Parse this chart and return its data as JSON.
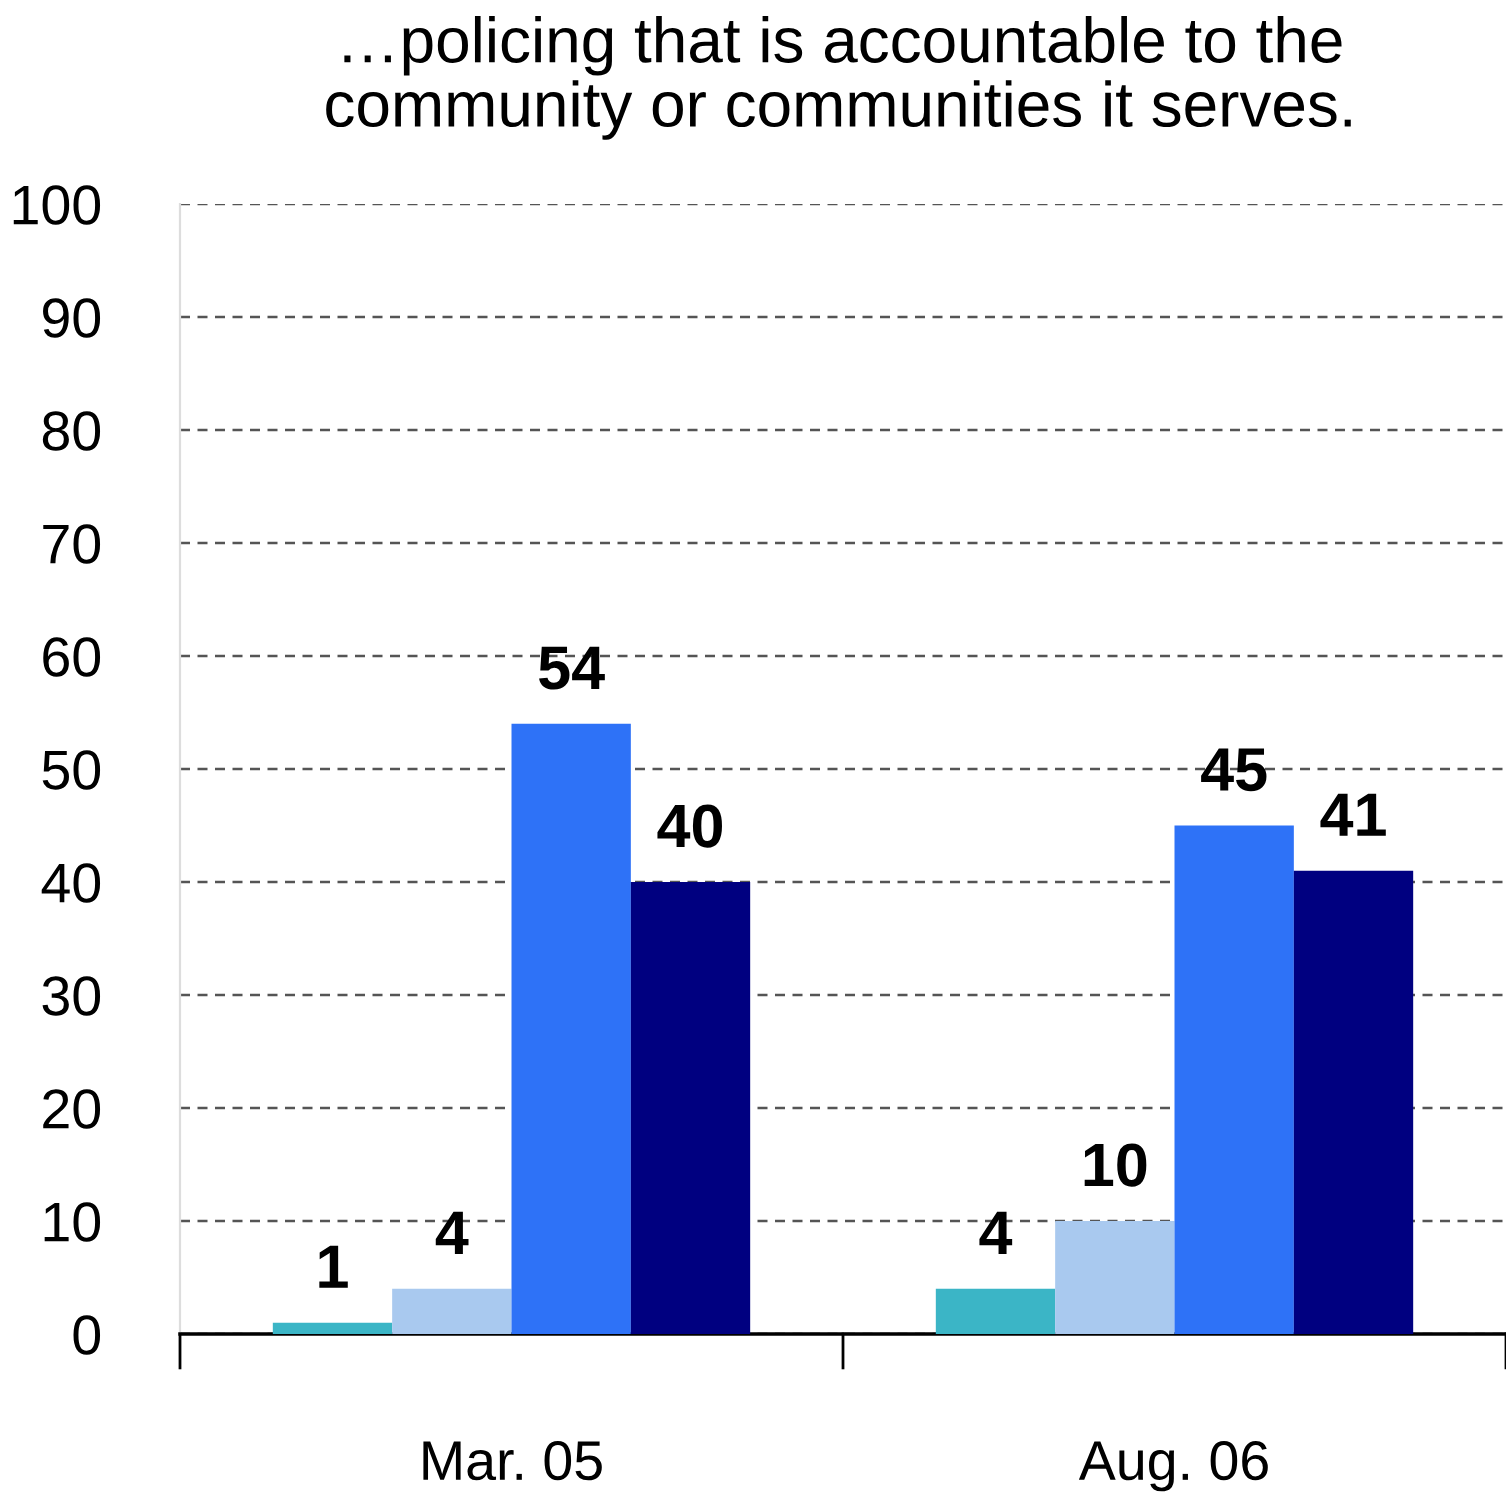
{
  "chart_data": {
    "type": "bar",
    "title": "…policing that is accountable to the\ncommunity or communities it serves.",
    "categories": [
      "Mar. 05",
      "Aug. 06"
    ],
    "series": [
      {
        "color": "#3bb5c6",
        "values": [
          1,
          4
        ]
      },
      {
        "color": "#a9c9ef",
        "values": [
          4,
          10
        ]
      },
      {
        "color": "#2e72f7",
        "values": [
          54,
          45
        ]
      },
      {
        "color": "#000080",
        "values": [
          40,
          41
        ]
      }
    ],
    "ylim": [
      0,
      100
    ],
    "yticks": [
      0,
      10,
      20,
      30,
      40,
      50,
      60,
      70,
      80,
      90,
      100
    ],
    "grid": "y",
    "data_labels": true,
    "legend": false
  }
}
